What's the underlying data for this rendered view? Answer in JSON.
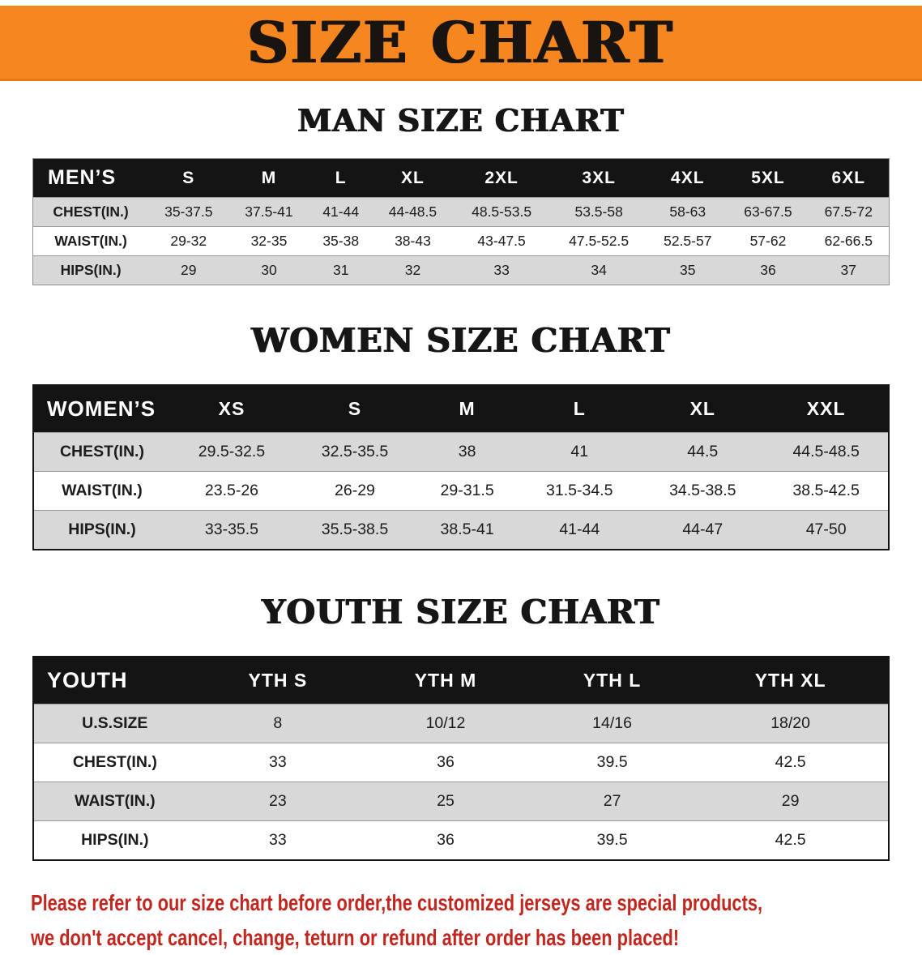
{
  "banner": {
    "title": "SIZE CHART"
  },
  "sections": [
    {
      "id": "men",
      "heading": "MAN SIZE CHART",
      "table": {
        "header": [
          "MEN’S",
          "S",
          "M",
          "L",
          "XL",
          "2XL",
          "3XL",
          "4XL",
          "5XL",
          "6XL"
        ],
        "rows": [
          [
            "CHEST(IN.)",
            "35-37.5",
            "37.5-41",
            "41-44",
            "44-48.5",
            "48.5-53.5",
            "53.5-58",
            "58-63",
            "63-67.5",
            "67.5-72"
          ],
          [
            "WAIST(IN.)",
            "29-32",
            "32-35",
            "35-38",
            "38-43",
            "43-47.5",
            "47.5-52.5",
            "52.5-57",
            "57-62",
            "62-66.5"
          ],
          [
            "HIPS(IN.)",
            "29",
            "30",
            "31",
            "32",
            "33",
            "34",
            "35",
            "36",
            "37"
          ]
        ]
      }
    },
    {
      "id": "women",
      "heading": "WOMEN SIZE CHART",
      "table": {
        "header": [
          "WOMEN’S",
          "XS",
          "S",
          "M",
          "L",
          "XL",
          "XXL"
        ],
        "rows": [
          [
            "CHEST(IN.)",
            "29.5-32.5",
            "32.5-35.5",
            "38",
            "41",
            "44.5",
            "44.5-48.5"
          ],
          [
            "WAIST(IN.)",
            "23.5-26",
            "26-29",
            "29-31.5",
            "31.5-34.5",
            "34.5-38.5",
            "38.5-42.5"
          ],
          [
            "HIPS(IN.)",
            "33-35.5",
            "35.5-38.5",
            "38.5-41",
            "41-44",
            "44-47",
            "47-50"
          ]
        ]
      }
    },
    {
      "id": "youth",
      "heading": "YOUTH SIZE CHART",
      "table": {
        "header": [
          "YOUTH",
          "YTH S",
          "YTH M",
          "YTH L",
          "YTH XL"
        ],
        "rows": [
          [
            "U.S.SIZE",
            "8",
            "10/12",
            "14/16",
            "18/20"
          ],
          [
            "CHEST(IN.)",
            "33",
            "36",
            "39.5",
            "42.5"
          ],
          [
            "WAIST(IN.)",
            "23",
            "25",
            "27",
            "29"
          ],
          [
            "HIPS(IN.)",
            "33",
            "36",
            "39.5",
            "42.5"
          ]
        ]
      }
    }
  ],
  "footer": {
    "line1": "Please refer to our size chart before order,the customized jerseys are special products,",
    "line2": "we don't accept cancel, change, teturn or refund after order has been placed!"
  },
  "colors": {
    "banner_orange": "#f6861f",
    "table_header_black": "#141414",
    "row_gray": "#d8d8d8",
    "footer_red": "#c1271f"
  }
}
